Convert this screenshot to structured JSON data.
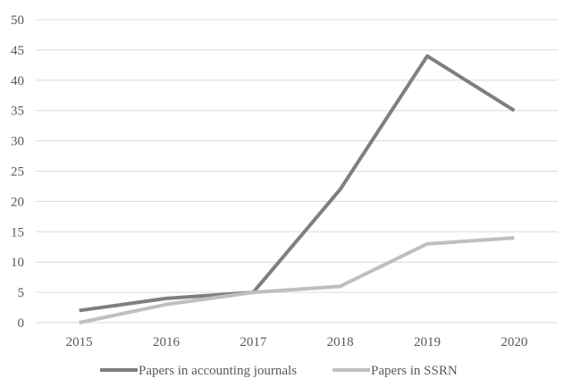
{
  "chart_data": {
    "type": "line",
    "title": "",
    "xlabel": "",
    "ylabel": "",
    "categories": [
      "2015",
      "2016",
      "2017",
      "2018",
      "2019",
      "2020"
    ],
    "ylim": [
      0,
      50
    ],
    "yticks": [
      0,
      5,
      10,
      15,
      20,
      25,
      30,
      35,
      40,
      45,
      50
    ],
    "grid": true,
    "legend_position": "bottom",
    "series": [
      {
        "name": "Papers in accounting journals",
        "values": [
          2,
          4,
          5,
          22,
          44,
          35
        ],
        "color": "#7f7f7f"
      },
      {
        "name": "Papers in SSRN",
        "values": [
          0,
          3,
          5,
          6,
          13,
          14
        ],
        "color": "#bfbfbf"
      }
    ]
  }
}
